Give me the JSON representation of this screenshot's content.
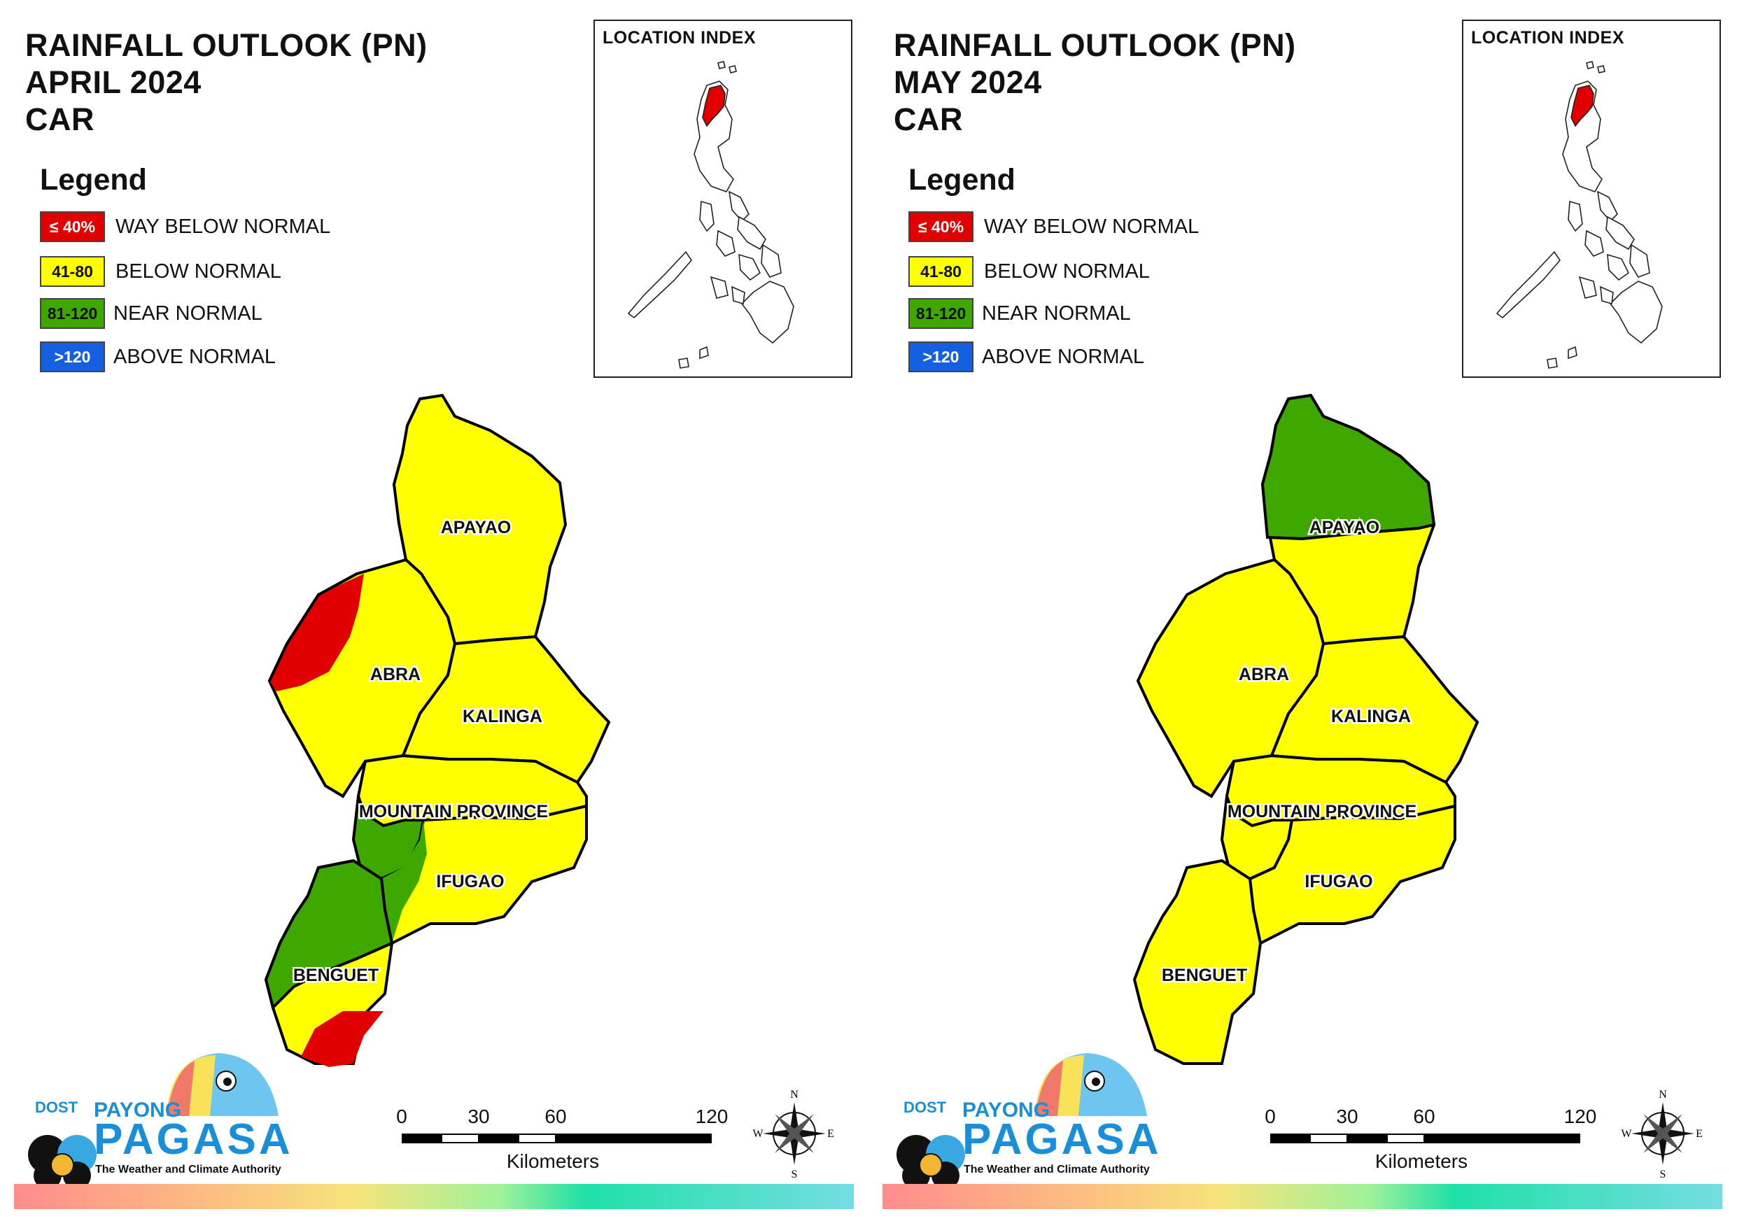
{
  "panels": [
    {
      "id": "april",
      "title_lines": [
        "RAINFALL OUTLOOK (PN)",
        "APRIL 2024",
        "CAR"
      ],
      "legend_title": "Legend",
      "legend": [
        {
          "range": "≤ 40%",
          "label": "WAY BELOW NORMAL",
          "color": "#e00000",
          "text_color": "#ffffff"
        },
        {
          "range": "41-80",
          "label": "BELOW NORMAL",
          "color": "#ffff00",
          "text_color": "#111111"
        },
        {
          "range": "81-120",
          "label": "NEAR NORMAL",
          "color": "#3ea800",
          "text_color": "#111111"
        },
        {
          "range": ">120",
          "label": "ABOVE NORMAL",
          "color": "#1560e0",
          "text_color": "#ffffff"
        }
      ],
      "inset_title": "LOCATION INDEX",
      "provinces": [
        "APAYAO",
        "ABRA",
        "KALINGA",
        "MOUNTAIN PROVINCE",
        "IFUGAO",
        "BENGUET"
      ],
      "scale": {
        "ticks": [
          "0",
          "30",
          "60",
          "120"
        ],
        "unit": "Kilometers"
      },
      "compass": {
        "n": "N",
        "e": "E",
        "s": "S",
        "w": "W"
      },
      "logo": {
        "dost": "DOST",
        "payong": "PAYONG",
        "pagasa": "PAGASA",
        "tagline": "The Weather and Climate Authority"
      }
    },
    {
      "id": "may",
      "title_lines": [
        "RAINFALL OUTLOOK (PN)",
        "MAY 2024",
        "CAR"
      ],
      "legend_title": "Legend",
      "legend": [
        {
          "range": "≤ 40%",
          "label": "WAY BELOW NORMAL",
          "color": "#e00000",
          "text_color": "#ffffff"
        },
        {
          "range": "41-80",
          "label": "BELOW NORMAL",
          "color": "#ffff00",
          "text_color": "#111111"
        },
        {
          "range": "81-120",
          "label": "NEAR NORMAL",
          "color": "#3ea800",
          "text_color": "#111111"
        },
        {
          "range": ">120",
          "label": "ABOVE NORMAL",
          "color": "#1560e0",
          "text_color": "#ffffff"
        }
      ],
      "inset_title": "LOCATION INDEX",
      "provinces": [
        "APAYAO",
        "ABRA",
        "KALINGA",
        "MOUNTAIN PROVINCE",
        "IFUGAO",
        "BENGUET"
      ],
      "scale": {
        "ticks": [
          "0",
          "30",
          "60",
          "120"
        ],
        "unit": "Kilometers"
      },
      "compass": {
        "n": "N",
        "e": "E",
        "s": "S",
        "w": "W"
      },
      "logo": {
        "dost": "DOST",
        "payong": "PAYONG",
        "pagasa": "PAGASA",
        "tagline": "The Weather and Climate Authority"
      }
    }
  ]
}
